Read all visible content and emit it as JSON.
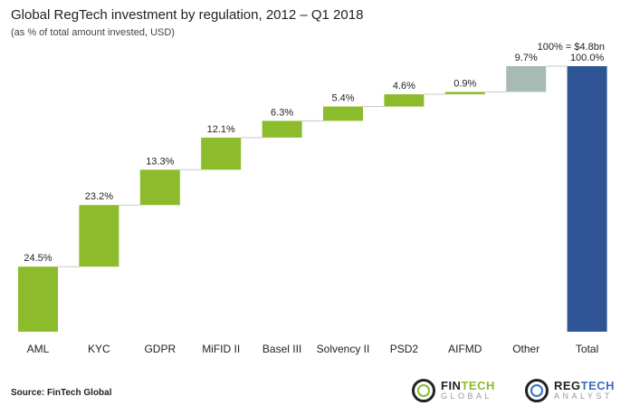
{
  "chart_data": {
    "type": "waterfall",
    "title": "Global RegTech investment by regulation, 2012 – Q1 2018",
    "subtitle": "(as % of total amount invested, USD)",
    "annotation": "100% = $4.8bn",
    "categories": [
      "AML",
      "KYC",
      "GDPR",
      "MiFID II",
      "Basel III",
      "Solvency II",
      "PSD2",
      "AIFMD",
      "Other",
      "Total"
    ],
    "values": [
      24.5,
      23.2,
      13.3,
      12.1,
      6.3,
      5.4,
      4.6,
      0.9,
      9.7,
      100.0
    ],
    "labels": [
      "24.5%",
      "23.2%",
      "13.3%",
      "12.1%",
      "6.3%",
      "5.4%",
      "4.6%",
      "0.9%",
      "9.7%",
      "100.0%"
    ],
    "ylim": [
      0,
      100
    ],
    "grid": false,
    "colors": {
      "regulation": "#8cbb2b",
      "other": "#a7bab4",
      "total": "#2f5597",
      "connector": "#c8c8c8"
    }
  },
  "footer": {
    "source": "Source: FinTech Global",
    "logo1": {
      "line1a": "FIN",
      "line1b": "TECH",
      "line2": "GLOBAL",
      "accent": "#8cbb2b"
    },
    "logo2": {
      "line1a": "REG",
      "line1b": "TECH",
      "line2": "ANALYST",
      "accent": "#3a6fc4"
    }
  }
}
